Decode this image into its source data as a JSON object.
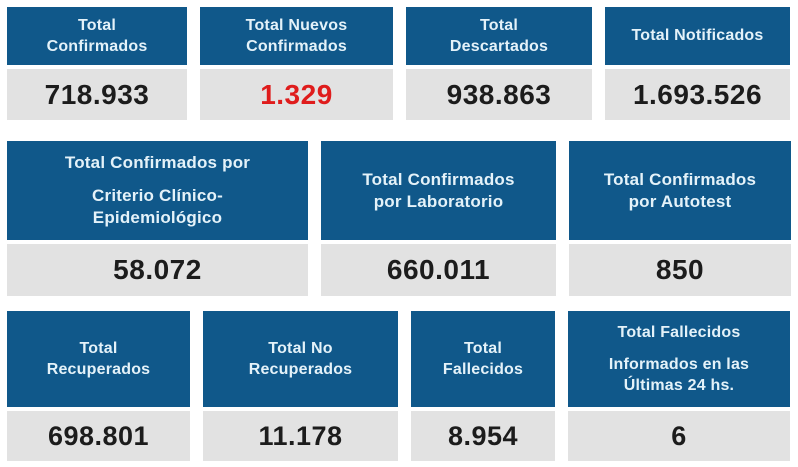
{
  "colors": {
    "header_bg": "#10588a",
    "header_text": "#e4f2f9",
    "value_bg": "#e2e2e2",
    "value_text": "#1c1c1c",
    "highlight_red": "#df1c1c",
    "red_value_style": "color:#df1c1c"
  },
  "rows": [
    {
      "cards": [
        {
          "name": "total-confirmados",
          "title": [
            "Total",
            "Confirmados"
          ],
          "value": "718.933"
        },
        {
          "name": "total-nuevos-confirmados",
          "title": [
            "Total Nuevos",
            "Confirmados"
          ],
          "value": "1.329"
        },
        {
          "name": "total-descartados",
          "title": [
            "Total",
            "Descartados"
          ],
          "value": "938.863"
        },
        {
          "name": "total-notificados",
          "title": [
            "Total Notificados"
          ],
          "value": "1.693.526"
        }
      ]
    },
    {
      "cards": [
        {
          "name": "total-confirmados-criterio-clinico-epidemiologico",
          "title": [
            "Total Confirmados por"
          ],
          "title2": [
            "Criterio Clínico-",
            "Epidemiológico"
          ],
          "value": "58.072"
        },
        {
          "name": "total-confirmados-laboratorio",
          "title": [
            "Total Confirmados",
            "por Laboratorio"
          ],
          "value": "660.011"
        },
        {
          "name": "total-confirmados-autotest",
          "title": [
            "Total Confirmados",
            "por Autotest"
          ],
          "value": "850"
        }
      ]
    },
    {
      "cards": [
        {
          "name": "total-recuperados",
          "title": [
            "Total",
            "Recuperados"
          ],
          "value": "698.801"
        },
        {
          "name": "total-no-recuperados",
          "title": [
            "Total No",
            "Recuperados"
          ],
          "value": "11.178"
        },
        {
          "name": "total-fallecidos",
          "title": [
            "Total",
            "Fallecidos"
          ],
          "value": "8.954"
        },
        {
          "name": "total-fallecidos-ultimas-24hs",
          "title": [
            "Total Fallecidos"
          ],
          "title2": [
            "Informados en las",
            "Últimas 24 hs."
          ],
          "value": "6"
        }
      ]
    }
  ]
}
